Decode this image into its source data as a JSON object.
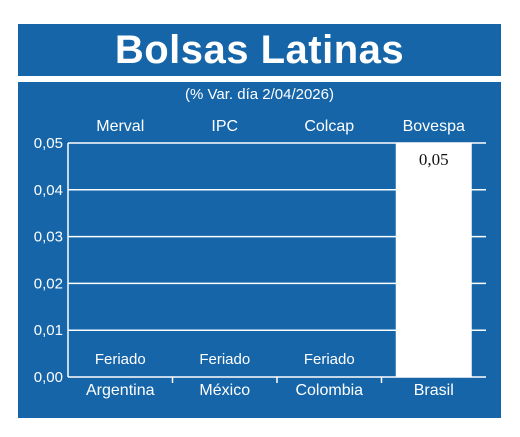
{
  "chart_data": {
    "type": "bar",
    "title": "Bolsas Latinas",
    "subtitle": "(% Var. día 2/04/2026)",
    "categories": [
      "Argentina",
      "México",
      "Colombia",
      "Brasil"
    ],
    "index_names": [
      "Merval",
      "IPC",
      "Colcap",
      "Bovespa"
    ],
    "values": [
      null,
      null,
      null,
      0.05
    ],
    "data_labels": [
      "Feriado",
      "Feriado",
      "Feriado",
      "0,05"
    ],
    "yticks": [
      "0,00",
      "0,01",
      "0,02",
      "0,03",
      "0,04",
      "0,05"
    ],
    "ylim": [
      0,
      0.05
    ],
    "grid": true,
    "colors": {
      "background": "#1565a8",
      "bar": "#ffffff",
      "grid": "#ffffff",
      "text": "#ffffff"
    }
  }
}
